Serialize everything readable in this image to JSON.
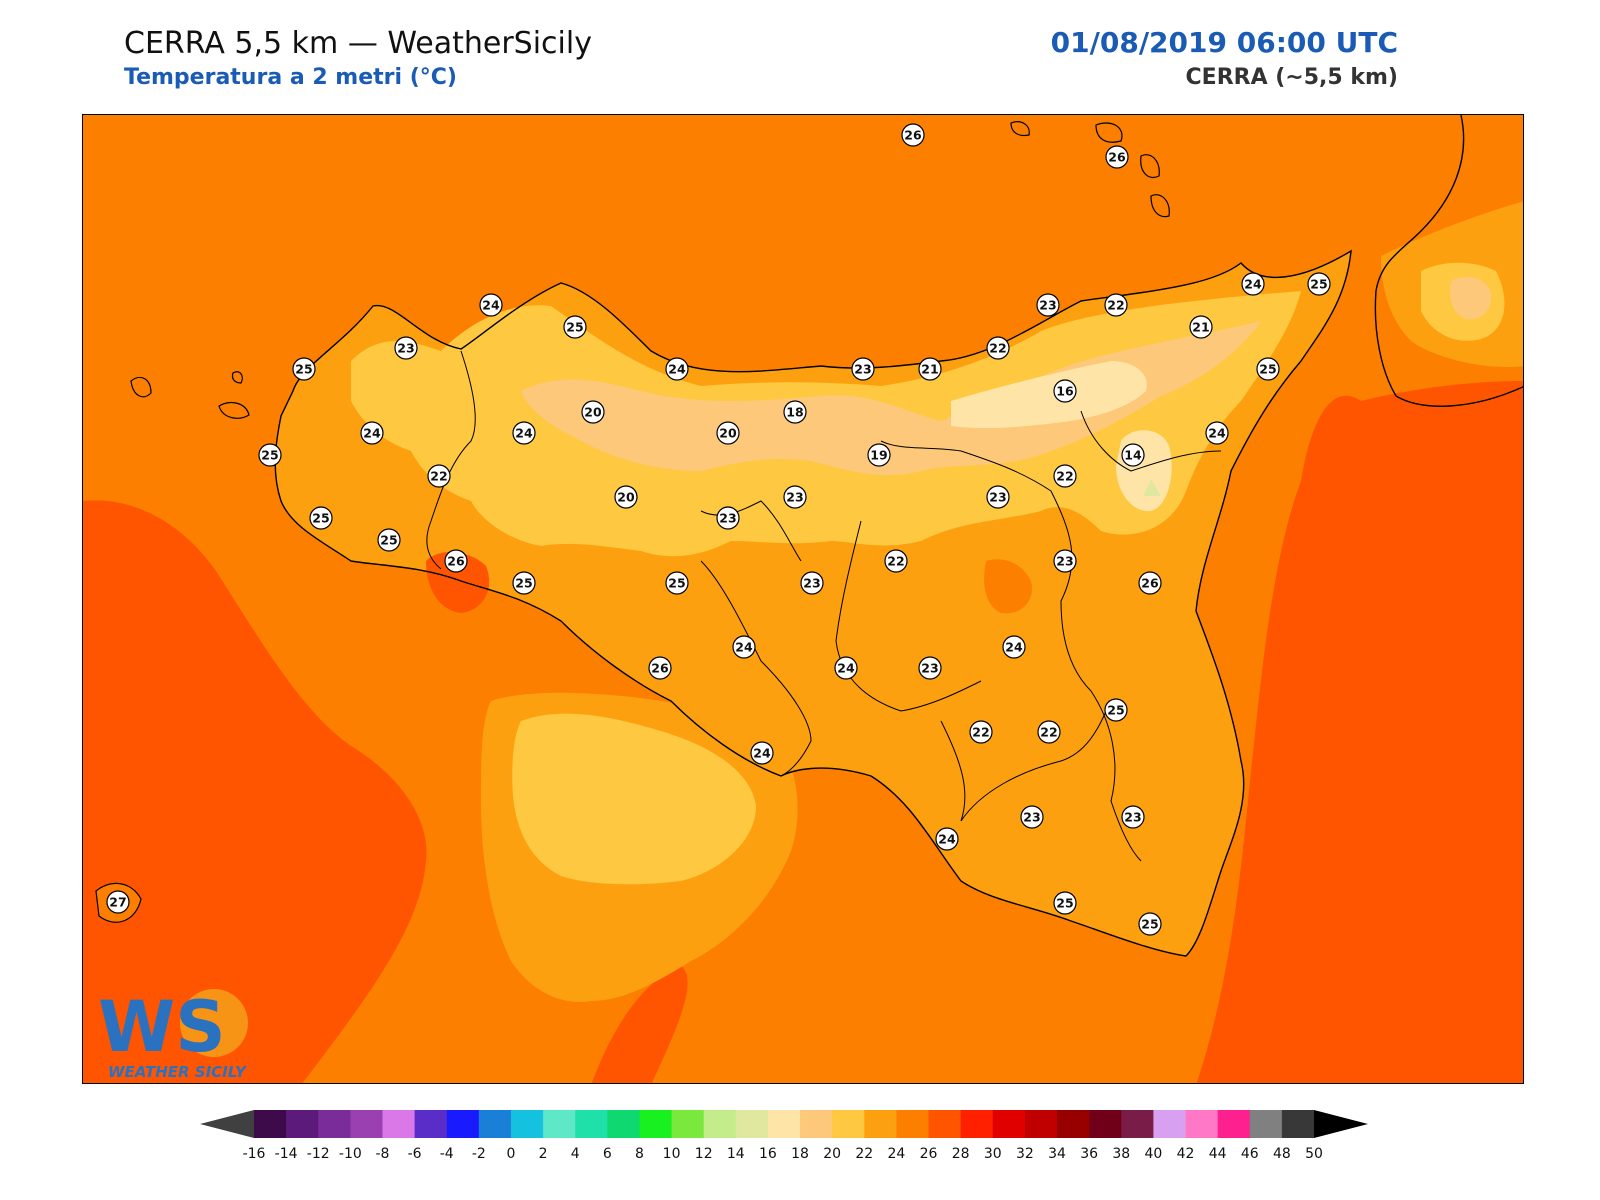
{
  "header": {
    "title": "CERRA 5,5 km — WeatherSicily",
    "subtitle": "Temperatura a 2 metri (°C)",
    "datetime": "01/08/2019 06:00 UTC",
    "model": "CERRA (~5,5 km)"
  },
  "logo": {
    "letters": "WS",
    "text": "WEATHER SICILY"
  },
  "colorbar": {
    "ticks": [
      "-16",
      "-14",
      "-12",
      "-10",
      "-8",
      "-6",
      "-4",
      "-2",
      "0",
      "2",
      "4",
      "6",
      "8",
      "10",
      "12",
      "14",
      "16",
      "18",
      "20",
      "22",
      "24",
      "26",
      "28",
      "30",
      "32",
      "34",
      "36",
      "38",
      "40",
      "42",
      "44",
      "46",
      "48",
      "50"
    ],
    "colors": [
      "#3d0a4a",
      "#5c1a7a",
      "#7a2c9a",
      "#9a40b0",
      "#d978e6",
      "#5a2dc8",
      "#1a1aff",
      "#1a7fd6",
      "#14c2e0",
      "#5fe8c8",
      "#1fe0a8",
      "#10d870",
      "#18f020",
      "#7ae83c",
      "#c4ec8a",
      "#e0e8a0",
      "#ffe4a8",
      "#fdc87a",
      "#fec840",
      "#fda010",
      "#fd7f00",
      "#ff5500",
      "#ff2000",
      "#e00000",
      "#c00000",
      "#980000",
      "#700018",
      "#7a1c48",
      "#d8a0f0",
      "#ff78c8",
      "#ff2090",
      "#808080",
      "#383838"
    ],
    "under_color": "#404040",
    "over_color": "#000000"
  },
  "map": {
    "background_color": "#fd7f00",
    "stations": [
      "26",
      "26",
      "24",
      "25",
      "25",
      "24",
      "23",
      "25",
      "21",
      "22",
      "23",
      "22",
      "21",
      "25",
      "16",
      "14",
      "18",
      "20",
      "20",
      "23",
      "24",
      "24",
      "25",
      "24",
      "22",
      "20",
      "19",
      "23",
      "23",
      "22",
      "24",
      "25",
      "25",
      "23",
      "26",
      "23",
      "22",
      "23",
      "26",
      "25",
      "25",
      "24",
      "26",
      "24",
      "23",
      "24",
      "22",
      "22",
      "25",
      "24",
      "24",
      "23",
      "23",
      "25",
      "25",
      "27"
    ]
  }
}
